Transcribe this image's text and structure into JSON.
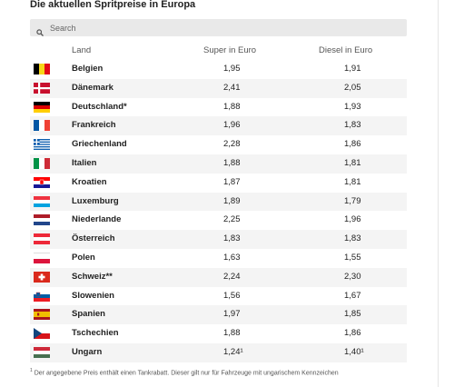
{
  "title": "Die aktuellen Spritpreise in Europa",
  "search": {
    "placeholder": "Search"
  },
  "columns": {
    "land": "Land",
    "super": "Super in Euro",
    "diesel": "Diesel in Euro"
  },
  "rows": [
    {
      "land": "Belgien",
      "super": "1,95",
      "diesel": "1,91",
      "flag": "be"
    },
    {
      "land": "Dänemark",
      "super": "2,41",
      "diesel": "2,05",
      "flag": "dk"
    },
    {
      "land": "Deutschland*",
      "super": "1,88",
      "diesel": "1,93",
      "flag": "de"
    },
    {
      "land": "Frankreich",
      "super": "1,96",
      "diesel": "1,83",
      "flag": "fr"
    },
    {
      "land": "Griechenland",
      "super": "2,28",
      "diesel": "1,86",
      "flag": "gr"
    },
    {
      "land": "Italien",
      "super": "1,88",
      "diesel": "1,81",
      "flag": "it"
    },
    {
      "land": "Kroatien",
      "super": "1,87",
      "diesel": "1,81",
      "flag": "hr"
    },
    {
      "land": "Luxemburg",
      "super": "1,89",
      "diesel": "1,79",
      "flag": "lu"
    },
    {
      "land": "Niederlande",
      "super": "2,25",
      "diesel": "1,96",
      "flag": "nl"
    },
    {
      "land": "Österreich",
      "super": "1,83",
      "diesel": "1,83",
      "flag": "at"
    },
    {
      "land": "Polen",
      "super": "1,63",
      "diesel": "1,55",
      "flag": "pl"
    },
    {
      "land": "Schweiz**",
      "super": "2,24",
      "diesel": "2,30",
      "flag": "ch"
    },
    {
      "land": "Slowenien",
      "super": "1,56",
      "diesel": "1,67",
      "flag": "si"
    },
    {
      "land": "Spanien",
      "super": "1,97",
      "diesel": "1,85",
      "flag": "es"
    },
    {
      "land": "Tschechien",
      "super": "1,88",
      "diesel": "1,86",
      "flag": "cz"
    },
    {
      "land": "Ungarn",
      "super": "1,24¹",
      "diesel": "1,40¹",
      "flag": "hu"
    }
  ],
  "footnote": {
    "mark": "1",
    "text": "Der angegebene Preis enthält einen Tankrabatt. Dieser gilt nur für Fahrzeuge mit ungarischem Kennzeichen"
  }
}
